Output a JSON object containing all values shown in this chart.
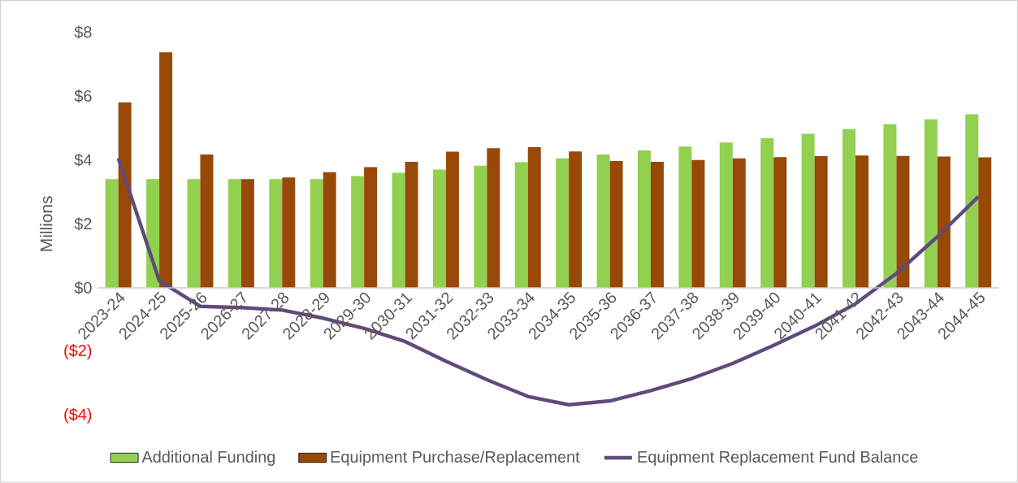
{
  "chart_data": {
    "type": "bar",
    "ylabel": "Millions",
    "categories": [
      "2023-24",
      "2024-25",
      "2025-26",
      "2026-27",
      "2027-28",
      "2028-29",
      "2029-30",
      "2030-31",
      "2031-32",
      "2032-33",
      "2033-34",
      "2034-35",
      "2035-36",
      "2036-37",
      "2037-38",
      "2038-39",
      "2039-40",
      "2040-41",
      "2041-42",
      "2042-43",
      "2043-44",
      "2044-45"
    ],
    "series": [
      {
        "name": "Additional Funding",
        "color": "#92d050",
        "values": [
          3.4,
          3.4,
          3.4,
          3.4,
          3.4,
          3.4,
          3.5,
          3.6,
          3.7,
          3.82,
          3.93,
          4.05,
          4.17,
          4.3,
          4.42,
          4.55,
          4.68,
          4.82,
          4.97,
          5.12,
          5.27,
          5.43
        ]
      },
      {
        "name": "Equipment Purchase/Replacement",
        "color": "#984807",
        "values": [
          5.8,
          7.37,
          4.17,
          3.4,
          3.45,
          3.62,
          3.78,
          3.94,
          4.26,
          4.37,
          4.4,
          4.27,
          3.97,
          3.94,
          4.0,
          4.05,
          4.09,
          4.12,
          4.14,
          4.13,
          4.11,
          4.08
        ]
      },
      {
        "name": "Equipment Replacement Fund Balance",
        "type": "line",
        "color": "#604a7b",
        "values": [
          4.05,
          0.22,
          -0.58,
          -0.62,
          -0.7,
          -0.95,
          -1.27,
          -1.68,
          -2.3,
          -2.88,
          -3.4,
          -3.66,
          -3.54,
          -3.22,
          -2.84,
          -2.37,
          -1.8,
          -1.2,
          -0.5,
          0.45,
          1.6,
          2.85
        ]
      }
    ],
    "ylim": [
      -4,
      8
    ],
    "yticks": [
      {
        "value": -4,
        "label": "($4)"
      },
      {
        "value": -2,
        "label": "($2)"
      },
      {
        "value": 0,
        "label": "$0"
      },
      {
        "value": 2,
        "label": "$2"
      },
      {
        "value": 4,
        "label": "$4"
      },
      {
        "value": 6,
        "label": "$6"
      },
      {
        "value": 8,
        "label": "$8"
      }
    ],
    "legend": "bottom"
  }
}
